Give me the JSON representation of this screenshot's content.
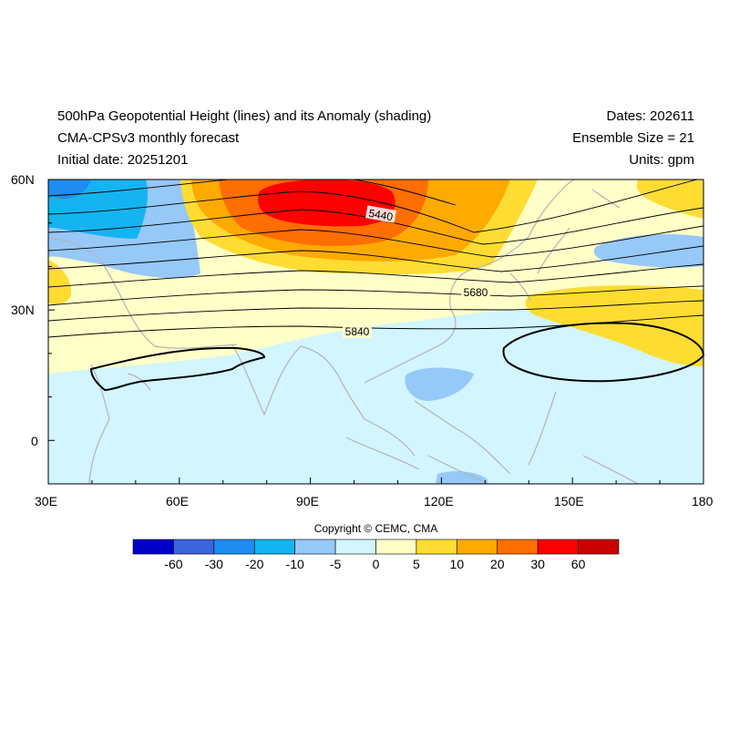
{
  "header": {
    "title": "500hPa Geopotential Height (lines) and its Anomaly (shading)",
    "subtitle": "CMA-CPSv3 monthly forecast",
    "initial": "Initial date: 20251201",
    "dates": "Dates: 202611",
    "ensemble": "Ensemble Size = 21",
    "units": "Units: gpm"
  },
  "map": {
    "lat_ticks": [
      "60N",
      "30N",
      "0"
    ],
    "lon_ticks": [
      "30E",
      "60E",
      "90E",
      "120E",
      "150E",
      "180"
    ],
    "lon_range": [
      30,
      180
    ],
    "lat_range": [
      -10,
      60
    ],
    "contour_labels": [
      "5440",
      "5680",
      "5840"
    ]
  },
  "colorbar": {
    "colors": [
      "#0000c8",
      "#3c64dc",
      "#1e8cf0",
      "#14b4f0",
      "#96c8f8",
      "#d2f5ff",
      "#ffffc8",
      "#ffdc32",
      "#ffaa00",
      "#ff6e00",
      "#ff0000",
      "#c80000"
    ],
    "labels": [
      "-60",
      "-30",
      "-20",
      "-10",
      "-5",
      "0",
      "5",
      "10",
      "20",
      "30",
      "60"
    ]
  },
  "copyright": "Copyright © CEMC, CMA"
}
